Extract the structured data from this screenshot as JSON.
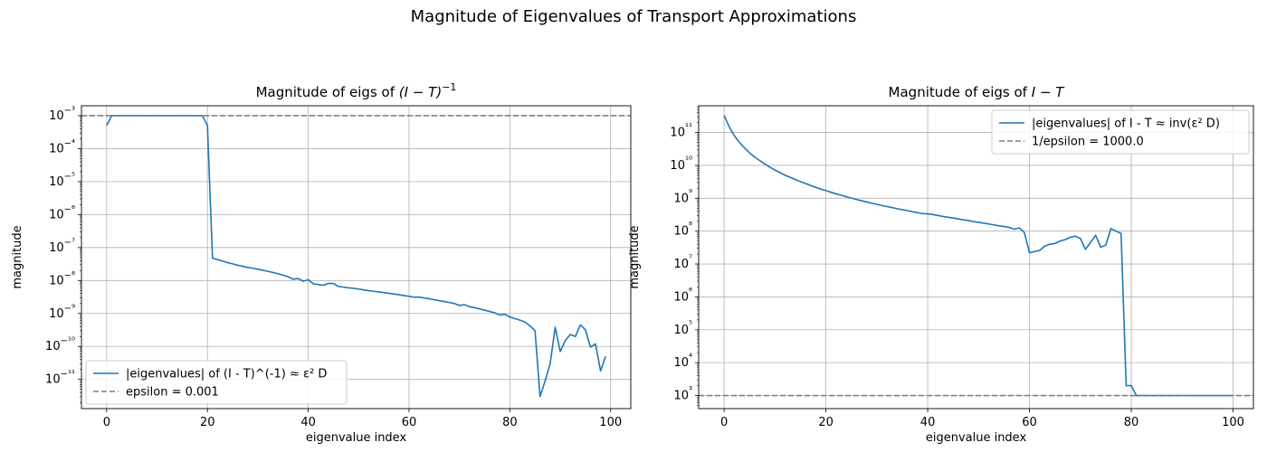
{
  "suptitle": "Magnitude of Eigenvalues of Transport Approximations",
  "colors": {
    "series": "#1f77b4",
    "reference": "#808080",
    "grid": "#b0b0b0",
    "axis": "#000000"
  },
  "chart_data": [
    {
      "type": "line",
      "title_prefix": "Magnitude of eigs of ",
      "title_math": "(I − T)",
      "title_sup": "−1",
      "xlabel": "eigenvalue index",
      "ylabel": "magnitude",
      "xlim": [
        -5,
        104
      ],
      "ylim": [
        1.3e-12,
        0.002
      ],
      "yscale": "log",
      "xticks": [
        0,
        20,
        40,
        60,
        80,
        100
      ],
      "yticks": [
        -11,
        -10,
        -9,
        -8,
        -7,
        -6,
        -5,
        -4,
        -3
      ],
      "grid": true,
      "legend_loc": "lower left",
      "series": [
        {
          "name": "|eigenvalues| of (I - T)^(-1) ≈ ε² D",
          "x": [
            0,
            1,
            2,
            3,
            4,
            5,
            6,
            7,
            8,
            9,
            10,
            11,
            12,
            13,
            14,
            15,
            16,
            17,
            18,
            19,
            20,
            21,
            22,
            23,
            24,
            25,
            26,
            27,
            28,
            29,
            30,
            31,
            32,
            33,
            34,
            35,
            36,
            37,
            38,
            39,
            40,
            41,
            42,
            43,
            44,
            45,
            46,
            47,
            48,
            49,
            50,
            51,
            52,
            53,
            54,
            55,
            56,
            57,
            58,
            59,
            60,
            61,
            62,
            63,
            64,
            65,
            66,
            67,
            68,
            69,
            70,
            71,
            72,
            73,
            74,
            75,
            76,
            77,
            78,
            79,
            80,
            81,
            82,
            83,
            84,
            85,
            86,
            87,
            88,
            89,
            90,
            91,
            92,
            93,
            94,
            95,
            96,
            97,
            98,
            99
          ],
          "y": [
            0.0005,
            0.001,
            0.001,
            0.001,
            0.001,
            0.001,
            0.001,
            0.001,
            0.001,
            0.001,
            0.001,
            0.001,
            0.001,
            0.001,
            0.001,
            0.001,
            0.001,
            0.001,
            0.001,
            0.001,
            0.0005,
            4.8e-08,
            4.3e-08,
            3.9e-08,
            3.5e-08,
            3.2e-08,
            2.9e-08,
            2.7e-08,
            2.5e-08,
            2.35e-08,
            2.2e-08,
            2.05e-08,
            1.9e-08,
            1.75e-08,
            1.6e-08,
            1.45e-08,
            1.3e-08,
            1.1e-08,
            1.15e-08,
            9.5e-09,
            1.05e-08,
            8e-09,
            7.5e-09,
            7.2e-09,
            8.2e-09,
            8.1e-09,
            6.6e-09,
            6.3e-09,
            6e-09,
            5.8e-09,
            5.5e-09,
            5.2e-09,
            4.9e-09,
            4.7e-09,
            4.5e-09,
            4.3e-09,
            4.1e-09,
            3.9e-09,
            3.7e-09,
            3.5e-09,
            3.3e-09,
            3.1e-09,
            3.15e-09,
            2.95e-09,
            2.8e-09,
            2.6e-09,
            2.45e-09,
            2.3e-09,
            2.15e-09,
            2e-09,
            1.75e-09,
            1.85e-09,
            1.6e-09,
            1.5e-09,
            1.38e-09,
            1.26e-09,
            1.15e-09,
            1.05e-09,
            9e-10,
            9.5e-10,
            7.8e-10,
            7e-10,
            6.3e-10,
            5.5e-10,
            4.2e-10,
            3e-10,
            3e-12,
            9e-12,
            3e-11,
            3.8e-10,
            7e-11,
            1.5e-10,
            2.3e-10,
            2e-10,
            4.5e-10,
            3.2e-10,
            9.5e-11,
            1.2e-10,
            1.8e-11,
            5e-11
          ]
        },
        {
          "name": "epsilon = 0.001",
          "style": "dashed",
          "constant": 0.001
        }
      ]
    },
    {
      "type": "line",
      "title_prefix": "Magnitude of eigs of ",
      "title_math": "I − T",
      "title_sup": "",
      "xlabel": "eigenvalue index",
      "ylabel": "magnitude",
      "xlim": [
        -5,
        104
      ],
      "ylim": [
        400,
        650000000000.0
      ],
      "yscale": "log",
      "xticks": [
        0,
        20,
        40,
        60,
        80,
        100
      ],
      "yticks": [
        3,
        4,
        5,
        6,
        7,
        8,
        9,
        10,
        11
      ],
      "grid": true,
      "legend_loc": "upper right",
      "series": [
        {
          "name": "|eigenvalues| of I - T ≈ inv(ε² D)",
          "x": [
            0,
            1,
            2,
            3,
            4,
            5,
            6,
            7,
            8,
            9,
            10,
            11,
            12,
            13,
            14,
            15,
            16,
            17,
            18,
            19,
            20,
            21,
            22,
            23,
            24,
            25,
            26,
            27,
            28,
            29,
            30,
            31,
            32,
            33,
            34,
            35,
            36,
            37,
            38,
            39,
            40,
            41,
            42,
            43,
            44,
            45,
            46,
            47,
            48,
            49,
            50,
            51,
            52,
            53,
            54,
            55,
            56,
            57,
            58,
            59,
            60,
            61,
            62,
            63,
            64,
            65,
            66,
            67,
            68,
            69,
            70,
            71,
            72,
            73,
            74,
            75,
            76,
            77,
            78,
            79,
            80,
            81,
            82,
            83,
            84,
            85,
            86,
            87,
            88,
            89,
            90,
            91,
            92,
            93,
            94,
            95,
            96,
            97,
            98,
            99,
            100
          ],
          "y": [
            330000000000.0,
            150000000000.0,
            80000000000.0,
            50000000000.0,
            34000000000.0,
            24000000000.0,
            18000000000.0,
            14000000000.0,
            11000000000.0,
            8800000000.0,
            7200000000.0,
            6000000000.0,
            5000000000.0,
            4300000000.0,
            3700000000.0,
            3200000000.0,
            2800000000.0,
            2450000000.0,
            2150000000.0,
            1900000000.0,
            1700000000.0,
            1520000000.0,
            1360000000.0,
            1230000000.0,
            1110000000.0,
            1010000000.0,
            920000000.0,
            840000000.0,
            770000000.0,
            710000000.0,
            650000000.0,
            600000000.0,
            560000000.0,
            520000000.0,
            480000000.0,
            450000000.0,
            420000000.0,
            390000000.0,
            365000000.0,
            340000000.0,
            335000000.0,
            320000000.0,
            300000000.0,
            280000000.0,
            265000000.0,
            250000000.0,
            235000000.0,
            220000000.0,
            210000000.0,
            195000000.0,
            185000000.0,
            175000000.0,
            165000000.0,
            155000000.0,
            145000000.0,
            138000000.0,
            130000000.0,
            115000000.0,
            125000000.0,
            90000000.0,
            22000000.0,
            24000000.0,
            26000000.0,
            35000000.0,
            40000000.0,
            42000000.0,
            50000000.0,
            55000000.0,
            65000000.0,
            70000000.0,
            60000000.0,
            28000000.0,
            45000000.0,
            75000000.0,
            32000000.0,
            38000000.0,
            120000000.0,
            100000000.0,
            85000000.0,
            2000.0,
            2000.0,
            1000.0,
            1000.0,
            1000.0,
            1000.0,
            1000.0,
            1000.0,
            1000.0,
            1000.0,
            1000.0,
            1000.0,
            1000.0,
            1000.0,
            1000.0,
            1000.0,
            1000.0,
            1000.0,
            1000.0,
            1000.0,
            1000.0,
            1000.0
          ]
        },
        {
          "name": "1/epsilon = 1000.0",
          "style": "dashed",
          "constant": 1000
        }
      ]
    }
  ]
}
